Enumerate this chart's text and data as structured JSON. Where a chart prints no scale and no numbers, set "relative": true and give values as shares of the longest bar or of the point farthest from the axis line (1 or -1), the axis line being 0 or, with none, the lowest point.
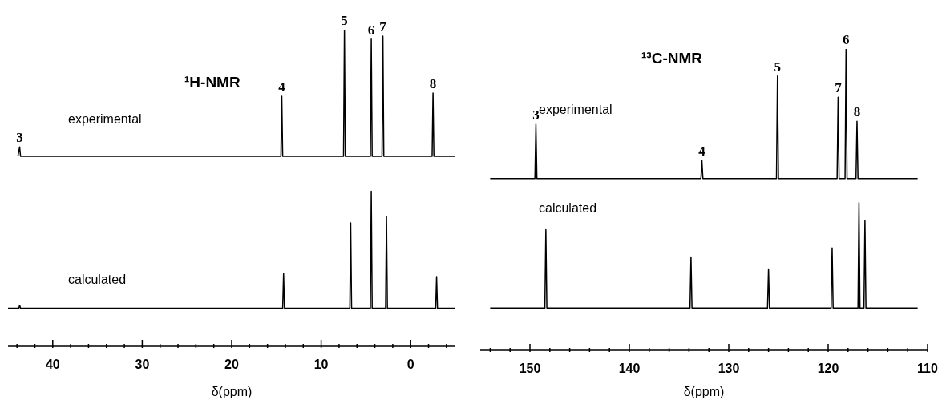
{
  "chart_data": [
    {
      "type": "line",
      "title": "¹H-NMR",
      "relative": true,
      "xlabel": "δ(ppm)",
      "xlim": [
        45,
        -5
      ],
      "xticks": [
        {
          "value": 44,
          "label": null
        },
        {
          "value": 42,
          "label": null
        },
        40,
        {
          "value": 38,
          "label": null
        },
        {
          "value": 36,
          "label": null
        },
        {
          "value": 34,
          "label": null
        },
        {
          "value": 32,
          "label": null
        },
        30,
        {
          "value": 28,
          "label": null
        },
        {
          "value": 26,
          "label": null
        },
        {
          "value": 24,
          "label": null
        },
        {
          "value": 22,
          "label": null
        },
        20,
        {
          "value": 18,
          "label": null
        },
        {
          "value": 16,
          "label": null
        },
        {
          "value": 14,
          "label": null
        },
        {
          "value": 12,
          "label": null
        },
        10,
        {
          "value": 8,
          "label": null
        },
        {
          "value": 6,
          "label": null
        },
        {
          "value": 4,
          "label": null
        },
        {
          "value": 2,
          "label": null
        },
        0,
        {
          "value": -2,
          "label": null
        },
        {
          "value": -4,
          "label": null
        }
      ],
      "series": [
        {
          "name": "experimental",
          "color": "#000000",
          "x": [
            43.9,
            43.7,
            43.6,
            14.5,
            14.4,
            14.3,
            7.5,
            7.4,
            7.3,
            4.5,
            4.4,
            4.3,
            3.2,
            3.1,
            3.0,
            -2.4,
            -2.5,
            -2.6,
            -5
          ],
          "values": [
            0.6,
            0.63,
            0.6,
            0.6,
            0.79,
            0.6,
            0.6,
            1,
            0.6,
            0.6,
            0.97,
            0.6,
            0.6,
            0.98,
            0.6,
            0.6,
            0.8,
            0.6,
            0.6
          ]
        },
        {
          "name": "calculated",
          "color": "#000000",
          "x": [
            45,
            43.8,
            43.7,
            43.6,
            14.3,
            14.2,
            14.1,
            6.8,
            6.7,
            6.6,
            4.5,
            4.4,
            4.3,
            2.8,
            2.7,
            2.6,
            -2.8,
            -2.9,
            -3.0,
            -5
          ],
          "values": [
            0.12,
            0.12,
            0.13,
            0.12,
            0.12,
            0.23,
            0.12,
            0.12,
            0.39,
            0.12,
            0.12,
            0.49,
            0.12,
            0.12,
            0.41,
            0.12,
            0.12,
            0.22,
            0.12,
            0.12
          ]
        }
      ],
      "annotations": [
        {
          "text": "3",
          "x": 43.7,
          "y": 0.63
        },
        {
          "text": "4",
          "x": 14.4,
          "y": 0.79
        },
        {
          "text": "5",
          "x": 7.4,
          "y": 1
        },
        {
          "text": "6",
          "x": 4.4,
          "y": 0.97
        },
        {
          "text": "7",
          "x": 3.1,
          "y": 0.98
        },
        {
          "text": "8",
          "x": -2.5,
          "y": 0.8
        }
      ]
    },
    {
      "type": "line",
      "title": "¹³C-NMR",
      "relative": true,
      "xlabel": "δ(ppm)",
      "xlim": [
        155,
        110
      ],
      "xticks": [
        {
          "value": 154,
          "label": null
        },
        {
          "value": 152,
          "label": null
        },
        150,
        {
          "value": 148,
          "label": null
        },
        {
          "value": 146,
          "label": null
        },
        {
          "value": 144,
          "label": null
        },
        {
          "value": 142,
          "label": null
        },
        140,
        {
          "value": 138,
          "label": null
        },
        {
          "value": 136,
          "label": null
        },
        {
          "value": 134,
          "label": null
        },
        {
          "value": 132,
          "label": null
        },
        130,
        {
          "value": 128,
          "label": null
        },
        {
          "value": 126,
          "label": null
        },
        {
          "value": 124,
          "label": null
        },
        {
          "value": 122,
          "label": null
        },
        120,
        {
          "value": 118,
          "label": null
        },
        {
          "value": 116,
          "label": null
        },
        {
          "value": 114,
          "label": null
        },
        {
          "value": 112,
          "label": null
        },
        110
      ],
      "series": [
        {
          "name": "experimental",
          "color": "#000000",
          "x": [
            154,
            149.5,
            149.4,
            149.3,
            132.8,
            132.7,
            132.6,
            125.2,
            125.1,
            125.0,
            119.1,
            119.0,
            118.9,
            118.3,
            118.2,
            118.1,
            117.2,
            117.1,
            117.0,
            111
          ],
          "values": [
            0.57,
            0.57,
            0.75,
            0.57,
            0.57,
            0.63,
            0.57,
            0.57,
            0.91,
            0.57,
            0.57,
            0.84,
            0.57,
            0.57,
            1,
            0.57,
            0.57,
            0.76,
            0.57,
            0.57
          ]
        },
        {
          "name": "calculated",
          "color": "#000000",
          "x": [
            154,
            148.5,
            148.4,
            148.3,
            133.9,
            133.8,
            133.7,
            126.1,
            126.0,
            125.9,
            119.7,
            119.6,
            119.5,
            117.0,
            116.9,
            116.8,
            116.4,
            116.3,
            116.2,
            111
          ],
          "values": [
            0.14,
            0.14,
            0.4,
            0.14,
            0.14,
            0.31,
            0.14,
            0.14,
            0.27,
            0.14,
            0.14,
            0.34,
            0.14,
            0.14,
            0.49,
            0.14,
            0.14,
            0.43,
            0.14,
            0.14
          ]
        }
      ],
      "annotations": [
        {
          "text": "3",
          "x": 149.4,
          "y": 0.75
        },
        {
          "text": "4",
          "x": 132.7,
          "y": 0.63
        },
        {
          "text": "5",
          "x": 125.1,
          "y": 0.91
        },
        {
          "text": "7",
          "x": 119.0,
          "y": 0.84
        },
        {
          "text": "6",
          "x": 118.2,
          "y": 1
        },
        {
          "text": "8",
          "x": 117.1,
          "y": 0.76
        }
      ]
    }
  ]
}
